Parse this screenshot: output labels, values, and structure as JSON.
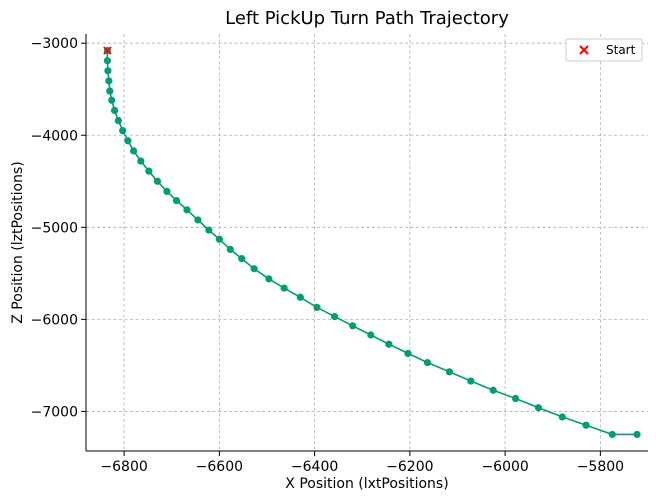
{
  "chart_data": {
    "type": "line",
    "title": "Left PickUp Turn Path Trajectory",
    "xlabel": "X Position (lxtPositions)",
    "ylabel": "Z Position (lztPositions)",
    "xlim": [
      -6880,
      -5700
    ],
    "ylim": [
      -7430,
      -2900
    ],
    "xticks": [
      -6800,
      -6600,
      -6400,
      -6200,
      -6000,
      -5800
    ],
    "yticks": [
      -3000,
      -4000,
      -5000,
      -6000,
      -7000
    ],
    "xtick_labels": [
      "−6800",
      "−6600",
      "−6400",
      "−6200",
      "−6000",
      "−5800"
    ],
    "ytick_labels": [
      "−3000",
      "−4000",
      "−5000",
      "−6000",
      "−7000"
    ],
    "grid": true,
    "legend_position": "top-right",
    "series": [
      {
        "color": "#009E73",
        "marker": "circle",
        "x": [
          -6835,
          -6835,
          -6834,
          -6832,
          -6830,
          -6826,
          -6820,
          -6812,
          -6803,
          -6792,
          -6780,
          -6765,
          -6748,
          -6730,
          -6710,
          -6690,
          -6668,
          -6645,
          -6622,
          -6600,
          -6577,
          -6553,
          -6527,
          -6496,
          -6464,
          -6430,
          -6395,
          -6358,
          -6320,
          -6282,
          -6244,
          -6204,
          -6163,
          -6117,
          -6072,
          -6025,
          -5978,
          -5930,
          -5880,
          -5830,
          -5775,
          -5723
        ],
        "y": [
          -3080,
          -3190,
          -3300,
          -3410,
          -3520,
          -3620,
          -3730,
          -3840,
          -3950,
          -4060,
          -4170,
          -4280,
          -4390,
          -4500,
          -4610,
          -4710,
          -4810,
          -4920,
          -5030,
          -5130,
          -5240,
          -5340,
          -5450,
          -5560,
          -5660,
          -5760,
          -5870,
          -5970,
          -6070,
          -6170,
          -6270,
          -6370,
          -6470,
          -6570,
          -6670,
          -6770,
          -6860,
          -6960,
          -7060,
          -7150,
          -7250,
          -7250
        ]
      }
    ],
    "start_point": {
      "label": "Start",
      "x": -6835,
      "y": -3080,
      "color": "#FF0000",
      "marker": "x"
    }
  }
}
